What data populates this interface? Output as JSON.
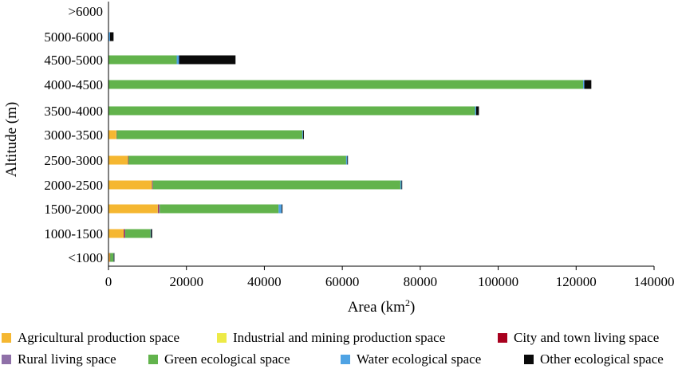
{
  "chart_data": {
    "type": "bar",
    "orientation": "horizontal",
    "stacked": true,
    "title": "",
    "xlabel": "Area (km",
    "xlabel_sup": "2",
    "xlabel_close": ")",
    "ylabel": "Altitude (m)",
    "xlim": [
      0,
      140000
    ],
    "x_ticks": [
      "0",
      "20000",
      "40000",
      "60000",
      "80000",
      "100000",
      "120000",
      "140000"
    ],
    "categories": [
      "<1000",
      "1000-1500",
      "1500-2000",
      "2000-2500",
      "2500-3000",
      "3000-3500",
      "3500-4000",
      "4000-4500",
      "4500-5000",
      "5000-6000",
      ">6000"
    ],
    "grid": false,
    "legend_position": "bottom",
    "series": [
      {
        "name": "Agricultural production space",
        "color": "#F5B731",
        "values": [
          300,
          3800,
          12500,
          11000,
          4900,
          2000,
          50,
          0,
          0,
          0,
          0
        ]
      },
      {
        "name": "Industrial and mining production space",
        "color": "#EDEA47",
        "values": [
          50,
          100,
          150,
          150,
          100,
          50,
          0,
          0,
          0,
          0,
          0
        ]
      },
      {
        "name": "City and town living space",
        "color": "#A8001E",
        "values": [
          50,
          200,
          200,
          100,
          80,
          30,
          0,
          0,
          0,
          0,
          0
        ]
      },
      {
        "name": "Rural living space",
        "color": "#8F70A8",
        "values": [
          50,
          200,
          300,
          150,
          100,
          50,
          0,
          0,
          0,
          0,
          0
        ]
      },
      {
        "name": "Green ecological space",
        "color": "#62B34C",
        "values": [
          850,
          6500,
          30500,
          63500,
          55800,
          47600,
          94000,
          121800,
          17500,
          0,
          0
        ]
      },
      {
        "name": "Water ecological space",
        "color": "#4FA3E4",
        "values": [
          50,
          100,
          800,
          300,
          300,
          200,
          300,
          300,
          600,
          400,
          0
        ]
      },
      {
        "name": "Other ecological space",
        "color": "#0A0A0A",
        "values": [
          100,
          300,
          200,
          100,
          100,
          200,
          700,
          1800,
          14500,
          900,
          0
        ]
      }
    ]
  }
}
